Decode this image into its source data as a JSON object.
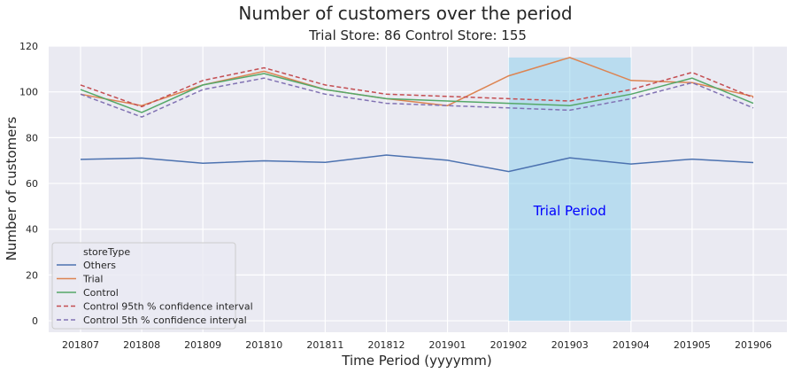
{
  "chart_data": {
    "type": "line",
    "title": "Number of customers over the period",
    "subtitle": "Trial Store: 86  Control Store: 155",
    "xlabel": "Time Period (yyyymm)",
    "ylabel": "Number of customers",
    "ylim": [
      -5,
      120
    ],
    "yticks": [
      0,
      20,
      40,
      60,
      80,
      100,
      120
    ],
    "categories": [
      "201807",
      "201808",
      "201809",
      "201810",
      "201811",
      "201812",
      "201901",
      "201902",
      "201903",
      "201904",
      "201905",
      "201906"
    ],
    "grid": true,
    "legend": {
      "title": "storeType",
      "placement": "lower-left"
    },
    "series": [
      {
        "name": "Others",
        "color": "#4c72b0",
        "dash": "solid",
        "values": [
          70.5,
          71.1,
          68.8,
          69.9,
          69.2,
          72.4,
          70.1,
          65.2,
          71.2,
          68.5,
          70.6,
          69.1
        ]
      },
      {
        "name": "Trial",
        "color": "#dd8452",
        "dash": "solid",
        "values": [
          99,
          94,
          103,
          109,
          101,
          97,
          94,
          107,
          115,
          105,
          104,
          98
        ]
      },
      {
        "name": "Control",
        "color": "#55a868",
        "dash": "solid",
        "values": [
          101,
          91,
          103,
          108,
          101,
          97,
          96,
          95,
          94,
          99,
          106,
          95
        ]
      },
      {
        "name": "Control 95th % confidence interval",
        "color": "#c44e52",
        "dash": "dashed",
        "values": [
          103,
          93.5,
          105,
          110.5,
          103,
          99,
          98,
          97,
          96,
          101,
          108.5,
          97.5
        ]
      },
      {
        "name": "Control 5th % confidence interval",
        "color": "#8172b3",
        "dash": "dashed",
        "values": [
          99,
          89,
          101,
          106,
          99,
          95,
          94,
          93,
          92,
          97,
          104,
          93
        ]
      }
    ],
    "annotation": {
      "text": "Trial Period",
      "x_start": "201902",
      "x_end": "201904",
      "y_start": 0,
      "y_end": 115,
      "fill": "#87ceeb",
      "text_color": "#0000ff",
      "text_y": 46
    },
    "background": "#eaeaf2"
  }
}
